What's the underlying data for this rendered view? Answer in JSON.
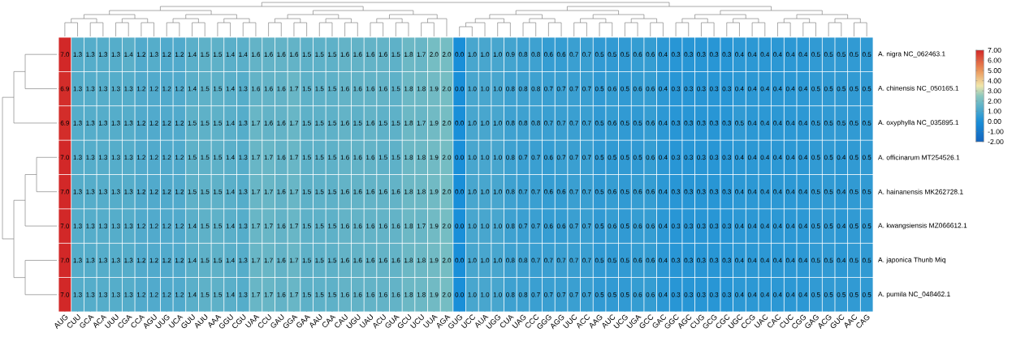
{
  "chart_data": {
    "type": "heatmap",
    "categories": [
      "AUG",
      "CUU",
      "GCA",
      "ACA",
      "UUU",
      "CGA",
      "CCA",
      "AGU",
      "UUG",
      "UCA",
      "GUU",
      "AUU",
      "AAA",
      "GGU",
      "CGU",
      "UAA",
      "CCU",
      "GAU",
      "GGA",
      "GAA",
      "AAU",
      "CAA",
      "CAU",
      "UGU",
      "UAU",
      "ACU",
      "GUA",
      "GCU",
      "UCU",
      "UUA",
      "AGA",
      "GUG",
      "UCC",
      "AUA",
      "UGG",
      "CUA",
      "UAG",
      "CCC",
      "GGG",
      "AGG",
      "UUC",
      "ACC",
      "AAG",
      "AUC",
      "UCG",
      "UGA",
      "GCC",
      "GAC",
      "GGC",
      "AGC",
      "CUG",
      "GCG",
      "CGC",
      "UGC",
      "CCG",
      "UAC",
      "CAC",
      "CUC",
      "CGG",
      "GAG",
      "ACG",
      "GUC",
      "AAC",
      "CAG"
    ],
    "y_categories": [
      "A. nigra NC_062463.1",
      "A. chinensis NC_050165.1",
      "A. oxyphylla NC_035895.1",
      "A. officinarum MT254526.1",
      "A. hainanensis MK262728.1",
      "A. kwangsiensis MZ066612.1",
      "A. japonica Thunb Miq",
      "A. pumila NC_048462.1"
    ],
    "cells": [
      [
        7.0,
        1.3,
        1.3,
        1.3,
        1.3,
        1.4,
        1.2,
        1.3,
        1.2,
        1.2,
        1.4,
        1.5,
        1.5,
        1.4,
        1.4,
        1.6,
        1.6,
        1.6,
        1.6,
        1.5,
        1.5,
        1.5,
        1.6,
        1.6,
        1.6,
        1.6,
        1.5,
        1.8,
        1.7,
        2.0,
        2.0,
        0.0,
        1.0,
        1.0,
        1.0,
        0.9,
        0.8,
        0.8,
        0.6,
        0.6,
        0.7,
        0.7,
        0.5,
        0.5,
        0.5,
        0.6,
        0.6,
        0.4,
        0.3,
        0.3,
        0.3,
        0.3,
        0.3,
        0.4,
        0.4,
        0.4,
        0.4,
        0.4,
        0.4,
        0.5,
        0.5,
        0.5,
        0.5,
        0.5
      ],
      [
        6.9,
        1.3,
        1.3,
        1.3,
        1.3,
        1.3,
        1.2,
        1.2,
        1.2,
        1.2,
        1.4,
        1.5,
        1.5,
        1.4,
        1.3,
        1.6,
        1.6,
        1.6,
        1.7,
        1.5,
        1.5,
        1.5,
        1.6,
        1.6,
        1.6,
        1.6,
        1.5,
        1.8,
        1.8,
        1.9,
        2.0,
        0.0,
        1.0,
        1.0,
        1.0,
        0.8,
        0.8,
        0.8,
        0.7,
        0.7,
        0.7,
        0.7,
        0.5,
        0.6,
        0.5,
        0.6,
        0.6,
        0.4,
        0.3,
        0.3,
        0.3,
        0.3,
        0.3,
        0.4,
        0.4,
        0.4,
        0.4,
        0.4,
        0.4,
        0.5,
        0.5,
        0.5,
        0.5,
        0.5
      ],
      [
        6.9,
        1.3,
        1.3,
        1.3,
        1.3,
        1.3,
        1.2,
        1.2,
        1.2,
        1.2,
        1.5,
        1.5,
        1.5,
        1.4,
        1.3,
        1.7,
        1.6,
        1.6,
        1.7,
        1.5,
        1.5,
        1.5,
        1.6,
        1.5,
        1.6,
        1.5,
        1.5,
        1.8,
        1.7,
        1.9,
        2.0,
        0.0,
        1.0,
        1.0,
        1.0,
        0.8,
        0.8,
        0.8,
        0.7,
        0.7,
        0.7,
        0.7,
        0.5,
        0.6,
        0.5,
        0.5,
        0.6,
        0.4,
        0.3,
        0.3,
        0.3,
        0.3,
        0.3,
        0.5,
        0.4,
        0.4,
        0.4,
        0.4,
        0.4,
        0.5,
        0.5,
        0.5,
        0.5,
        0.5
      ],
      [
        7.0,
        1.3,
        1.3,
        1.3,
        1.3,
        1.3,
        1.2,
        1.2,
        1.2,
        1.2,
        1.5,
        1.5,
        1.5,
        1.4,
        1.3,
        1.7,
        1.7,
        1.6,
        1.7,
        1.5,
        1.5,
        1.5,
        1.6,
        1.6,
        1.6,
        1.5,
        1.5,
        1.8,
        1.8,
        1.9,
        2.0,
        0.0,
        1.0,
        1.0,
        1.0,
        0.8,
        0.7,
        0.7,
        0.6,
        0.7,
        0.7,
        0.7,
        0.5,
        0.5,
        0.5,
        0.5,
        0.6,
        0.4,
        0.3,
        0.3,
        0.3,
        0.3,
        0.3,
        0.4,
        0.4,
        0.4,
        0.4,
        0.4,
        0.4,
        0.5,
        0.5,
        0.4,
        0.5,
        0.5
      ],
      [
        7.0,
        1.3,
        1.3,
        1.3,
        1.3,
        1.3,
        1.2,
        1.2,
        1.2,
        1.2,
        1.5,
        1.5,
        1.5,
        1.4,
        1.3,
        1.7,
        1.7,
        1.6,
        1.7,
        1.5,
        1.5,
        1.5,
        1.6,
        1.6,
        1.6,
        1.6,
        1.6,
        1.8,
        1.8,
        1.9,
        2.0,
        0.0,
        1.0,
        1.0,
        1.0,
        0.8,
        0.7,
        0.7,
        0.6,
        0.6,
        0.7,
        0.7,
        0.5,
        0.6,
        0.5,
        0.6,
        0.6,
        0.4,
        0.3,
        0.3,
        0.3,
        0.3,
        0.3,
        0.4,
        0.4,
        0.4,
        0.4,
        0.4,
        0.4,
        0.5,
        0.5,
        0.4,
        0.5,
        0.5
      ],
      [
        7.0,
        1.3,
        1.3,
        1.3,
        1.3,
        1.3,
        1.2,
        1.2,
        1.2,
        1.2,
        1.4,
        1.5,
        1.5,
        1.4,
        1.3,
        1.7,
        1.7,
        1.6,
        1.7,
        1.5,
        1.5,
        1.5,
        1.6,
        1.6,
        1.6,
        1.6,
        1.6,
        1.8,
        1.7,
        1.9,
        2.0,
        0.0,
        1.0,
        1.0,
        1.0,
        0.8,
        0.7,
        0.7,
        0.6,
        0.6,
        0.7,
        0.7,
        0.5,
        0.6,
        0.5,
        0.6,
        0.6,
        0.4,
        0.3,
        0.3,
        0.3,
        0.3,
        0.3,
        0.4,
        0.4,
        0.4,
        0.4,
        0.4,
        0.4,
        0.5,
        0.5,
        0.4,
        0.5,
        0.5
      ],
      [
        7.0,
        1.3,
        1.3,
        1.3,
        1.3,
        1.3,
        1.2,
        1.2,
        1.2,
        1.2,
        1.4,
        1.5,
        1.5,
        1.4,
        1.3,
        1.7,
        1.7,
        1.6,
        1.7,
        1.5,
        1.5,
        1.5,
        1.6,
        1.6,
        1.6,
        1.6,
        1.6,
        1.8,
        1.8,
        1.9,
        2.0,
        0.0,
        1.0,
        1.0,
        1.0,
        0.8,
        0.8,
        0.7,
        0.7,
        0.7,
        0.7,
        0.7,
        0.5,
        0.5,
        0.5,
        0.6,
        0.6,
        0.4,
        0.3,
        0.3,
        0.3,
        0.3,
        0.3,
        0.4,
        0.4,
        0.4,
        0.4,
        0.4,
        0.4,
        0.5,
        0.5,
        0.4,
        0.5,
        0.5
      ],
      [
        7.0,
        1.3,
        1.3,
        1.3,
        1.3,
        1.3,
        1.2,
        1.2,
        1.2,
        1.2,
        1.4,
        1.5,
        1.5,
        1.4,
        1.3,
        1.7,
        1.7,
        1.6,
        1.7,
        1.5,
        1.5,
        1.5,
        1.6,
        1.6,
        1.6,
        1.6,
        1.6,
        1.8,
        1.8,
        1.9,
        2.0,
        0.0,
        1.0,
        1.0,
        1.0,
        0.8,
        0.8,
        0.7,
        0.7,
        0.7,
        0.7,
        0.7,
        0.5,
        0.5,
        0.5,
        0.6,
        0.6,
        0.4,
        0.3,
        0.3,
        0.3,
        0.3,
        0.3,
        0.4,
        0.4,
        0.4,
        0.4,
        0.4,
        0.4,
        0.5,
        0.5,
        0.5,
        0.5,
        0.5
      ]
    ],
    "cell_labels": [
      [
        "7.0",
        "1.3",
        "1.3",
        "1.3",
        "1.3",
        "1.4",
        "1.2",
        "1.3",
        "1.2",
        "1.2",
        "1.4",
        "1.5",
        "1.5",
        "1.4",
        "1.4",
        "1.6",
        "1.6",
        "1.6",
        "1.6",
        "1.5",
        "1.5",
        "1.5",
        "1.6",
        "1.6",
        "1.6",
        "1.6",
        "1.5",
        "1.8",
        "1.7",
        "2.0",
        "2.0",
        "0.0",
        "1.0",
        "1.0",
        "1.0",
        "0.9",
        "0.8",
        "0.8",
        "0.6",
        "0.6",
        "0.7",
        "0.7",
        "0.5",
        "0.5",
        "0.5",
        "0.6",
        "0.6",
        "0.4",
        "0.3",
        "0.3",
        "0.3",
        "0.3",
        "0.3",
        "0.4",
        "0.4",
        "0.4",
        "0.4",
        "0.4",
        "0.4",
        "0.5",
        "0.5",
        "0.5",
        "0.5",
        "0.5"
      ],
      [
        "6.9",
        "1.3",
        "1.3",
        "1.3",
        "1.3",
        "1.3",
        "1.2",
        "1.2",
        "1.2",
        "1.2",
        "1.4",
        "1.5",
        "1.5",
        "1.4",
        "1.3",
        "1.6",
        "1.6",
        "1.6",
        "1.7",
        "1.5",
        "1.5",
        "1.5",
        "1.6",
        "1.6",
        "1.6",
        "1.6",
        "1.5",
        "1.8",
        "1.8",
        "1.9",
        "2.0",
        "0.0",
        "1.0",
        "1.0",
        "1.0",
        "0.8",
        "0.8",
        "0.8",
        "0.7",
        "0.7",
        "0.7",
        "0.7",
        "0.5",
        "0.6",
        "0.5",
        "0.6",
        "0.6",
        "0.4",
        "0.3",
        "0.3",
        "0.3",
        "0.3",
        "0.3",
        "0.4",
        "0.4",
        "0.4",
        "0.4",
        "0.4",
        "0.4",
        "0.5",
        "0.5",
        "0.5",
        "0.5",
        "0.5"
      ],
      [
        "6.9",
        "1.3",
        "1.3",
        "1.3",
        "1.3",
        "1.3",
        "1.2",
        "1.2",
        "1.2",
        "1.2",
        "1.5",
        "1.5",
        "1.5",
        "1.4",
        "1.3",
        "1.7",
        "1.6",
        "1.6",
        "1.7",
        "1.5",
        "1.5",
        "1.5",
        "1.6",
        "1.5",
        "1.6",
        "1.5",
        "1.5",
        "1.8",
        "1.7",
        "1.9",
        "2.0",
        "0.0",
        "1.0",
        "1.0",
        "1.0",
        "0.8",
        "0.8",
        "0.8",
        "0.7",
        "0.7",
        "0.7",
        "0.7",
        "0.5",
        "0.6",
        "0.5",
        "0.5",
        "0.6",
        "0.4",
        "0.3",
        "0.3",
        "0.3",
        "0.3",
        "0.3",
        "0.5",
        "0.4",
        "0.4",
        "0.4",
        "0.4",
        "0.4",
        "0.5",
        "0.5",
        "0.5",
        "0.5",
        "0.5"
      ],
      [
        "7.0",
        "1.3",
        "1.3",
        "1.3",
        "1.3",
        "1.3",
        "1.2",
        "1.2",
        "1.2",
        "1.2",
        "1.5",
        "1.5",
        "1.5",
        "1.4",
        "1.3",
        "1.7",
        "1.7",
        "1.6",
        "1.7",
        "1.5",
        "1.5",
        "1.5",
        "1.6",
        "1.6",
        "1.6",
        "1.5",
        "1.5",
        "1.8",
        "1.8",
        "1.9",
        "2.0",
        "0.0",
        "1.0",
        "1.0",
        "1.0",
        "0.8",
        "0.7",
        "0.7",
        "0.6",
        "0.7",
        "0.7",
        "0.7",
        "0.5",
        "0.5",
        "0.5",
        "0.5",
        "0.6",
        "0.4",
        "0.3",
        "0.3",
        "0.3",
        "0.3",
        "0.3",
        "0.4",
        "0.4",
        "0.4",
        "0.4",
        "0.4",
        "0.4",
        "0.5",
        "0.5",
        "0.4",
        "0.5",
        "0.5"
      ],
      [
        "7.0",
        "1.3",
        "1.3",
        "1.3",
        "1.3",
        "1.3",
        "1.2",
        "1.2",
        "1.2",
        "1.2",
        "1.5",
        "1.5",
        "1.5",
        "1.4",
        "1.3",
        "1.7",
        "1.7",
        "1.6",
        "1.7",
        "1.5",
        "1.5",
        "1.5",
        "1.6",
        "1.6",
        "1.6",
        "1.6",
        "1.6",
        "1.8",
        "1.8",
        "1.9",
        "2.0",
        "0.0",
        "1.0",
        "1.0",
        "1.0",
        "0.8",
        "0.7",
        "0.7",
        "0.6",
        "0.6",
        "0.7",
        "0.7",
        "0.5",
        "0.6",
        "0.5",
        "0.6",
        "0.6",
        "0.4",
        "0.3",
        "0.3",
        "0.3",
        "0.3",
        "0.3",
        "0.4",
        "0.4",
        "0.4",
        "0.4",
        "0.4",
        "0.4",
        "0.5",
        "0.5",
        "0.4",
        "0.5",
        "0.5"
      ],
      [
        "7.0",
        "1.3",
        "1.3",
        "1.3",
        "1.3",
        "1.3",
        "1.2",
        "1.2",
        "1.2",
        "1.2",
        "1.4",
        "1.5",
        "1.5",
        "1.4",
        "1.3",
        "1.7",
        "1.7",
        "1.6",
        "1.7",
        "1.5",
        "1.5",
        "1.5",
        "1.6",
        "1.6",
        "1.6",
        "1.6",
        "1.6",
        "1.8",
        "1.7",
        "1.9",
        "2.0",
        "0.0",
        "1.0",
        "1.0",
        "1.0",
        "0.8",
        "0.7",
        "0.7",
        "0.6",
        "0.6",
        "0.7",
        "0.7",
        "0.5",
        "0.6",
        "0.5",
        "0.6",
        "0.6",
        "0.4",
        "0.3",
        "0.3",
        "0.3",
        "0.3",
        "0.3",
        "0.4",
        "0.4",
        "0.4",
        "0.4",
        "0.4",
        "0.4",
        "0.5",
        "0.5",
        "0.4",
        "0.5",
        "0.5"
      ],
      [
        "7.0",
        "1.3",
        "1.3",
        "1.3",
        "1.3",
        "1.3",
        "1.2",
        "1.2",
        "1.2",
        "1.2",
        "1.4",
        "1.5",
        "1.5",
        "1.4",
        "1.3",
        "1.7",
        "1.7",
        "1.6",
        "1.7",
        "1.5",
        "1.5",
        "1.5",
        "1.6",
        "1.6",
        "1.6",
        "1.6",
        "1.6",
        "1.8",
        "1.8",
        "1.9",
        "2.0",
        "0.0",
        "1.0",
        "1.0",
        "1.0",
        "0.8",
        "0.8",
        "0.7",
        "0.7",
        "0.7",
        "0.7",
        "0.7",
        "0.5",
        "0.5",
        "0.5",
        "0.6",
        "0.6",
        "0.4",
        "0.3",
        "0.3",
        "0.3",
        "0.3",
        "0.3",
        "0.4",
        "0.4",
        "0.4",
        "0.4",
        "0.4",
        "0.4",
        "0.5",
        "0.5",
        "0.4",
        "0.5",
        "0.5"
      ],
      [
        "7.0",
        "1.3",
        "1.3",
        "1.3",
        "1.3",
        "1.3",
        "1.2",
        "1.2",
        "1.2",
        "1.2",
        "1.4",
        "1.5",
        "1.5",
        "1.4",
        "1.3",
        "1.7",
        "1.7",
        "1.6",
        "1.7",
        "1.5",
        "1.5",
        "1.5",
        "1.6",
        "1.6",
        "1.6",
        "1.6",
        "1.6",
        "1.8",
        "1.8",
        "1.9",
        "2.0",
        "0.0",
        "1.0",
        "1.0",
        "1.0",
        "0.8",
        "0.8",
        "0.7",
        "0.7",
        "0.7",
        "0.7",
        "0.7",
        "0.5",
        "0.5",
        "0.5",
        "0.6",
        "0.6",
        "0.4",
        "0.3",
        "0.3",
        "0.3",
        "0.3",
        "0.3",
        "0.4",
        "0.4",
        "0.4",
        "0.4",
        "0.4",
        "0.4",
        "0.5",
        "0.5",
        "0.5",
        "0.5",
        "0.5"
      ]
    ],
    "clim": [
      -2,
      7
    ],
    "cticks": [
      {
        "value": -2,
        "label": "-2.00"
      },
      {
        "value": -1,
        "label": "-1.00"
      },
      {
        "value": 0,
        "label": "0.00"
      },
      {
        "value": 1,
        "label": "1.00"
      },
      {
        "value": 2,
        "label": "2.00"
      },
      {
        "value": 3,
        "label": "3.00"
      },
      {
        "value": 4,
        "label": "4.00"
      },
      {
        "value": 5,
        "label": "5.00"
      },
      {
        "value": 6,
        "label": "6.00"
      },
      {
        "value": 7,
        "label": "7.00"
      }
    ]
  }
}
